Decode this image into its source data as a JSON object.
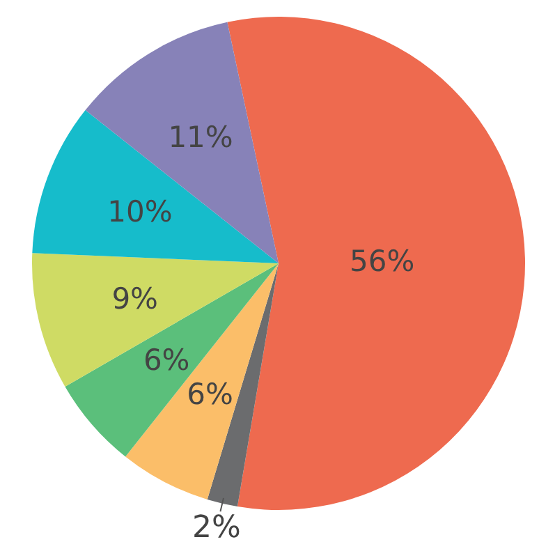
{
  "chart_data": {
    "type": "pie",
    "categories": [
      null,
      null,
      null,
      null,
      null,
      null,
      null
    ],
    "values": [
      56,
      2,
      6,
      6,
      9,
      10,
      11
    ],
    "colors": [
      "#ee6a4f",
      "#6b6c6e",
      "#fbbe69",
      "#5bbf7b",
      "#cfdb64",
      "#16bccb",
      "#8782b8"
    ],
    "value_labels": [
      "56%",
      "2%",
      "6%",
      "6%",
      "9%",
      "10%",
      "11%"
    ]
  }
}
